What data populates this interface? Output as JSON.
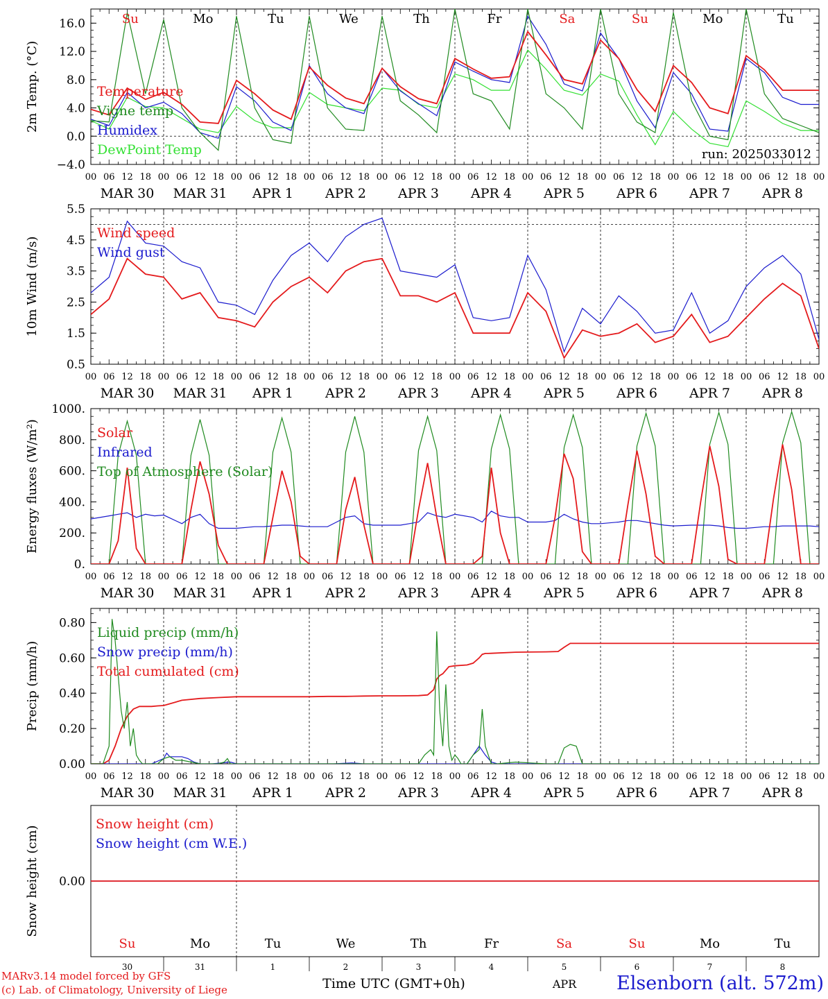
{
  "run_label": "run: 2025033012",
  "time_axis": {
    "xlabel": "Time UTC (GMT+0h)",
    "days": [
      "MAR 30",
      "MAR 31",
      "APR  1",
      "APR  2",
      "APR  3",
      "APR  4",
      "APR  5",
      "APR  6",
      "APR  7",
      "APR  8"
    ],
    "hour_ticks": [
      "00",
      "06",
      "12",
      "18"
    ],
    "weekdays": [
      "Su",
      "Mo",
      "Tu",
      "We",
      "Th",
      "Fr",
      "Sa",
      "Su",
      "Mo",
      "Tu"
    ],
    "weekday_colors": [
      "#e41a1c",
      "#000000",
      "#000000",
      "#000000",
      "#000000",
      "#000000",
      "#e41a1c",
      "#e41a1c",
      "#000000",
      "#000000"
    ],
    "bottom_day_numbers": [
      "30",
      "31",
      "1",
      "2",
      "3",
      "4",
      "5",
      "6",
      "7",
      "8"
    ],
    "bottom_month": "APR",
    "range_hours": [
      0,
      240
    ]
  },
  "colors": {
    "red": "#e41a1c",
    "blue": "#1a1acd",
    "green": "#1f8a1f",
    "lightgreen": "#33e033"
  },
  "footer": {
    "model": "MARv3.14 model forced by GFS",
    "lab": "(c) Lab. of Climatology, University of Liege",
    "station": "Elsenborn (alt. 572m)"
  },
  "chart_data": [
    {
      "type": "line",
      "ylabel": "2m Temp. (°C)",
      "ylim": [
        -4,
        18
      ],
      "yticks": [
        "16.0",
        "12.0",
        "8.0",
        "4.0",
        "0.0",
        "−4.0"
      ],
      "ytick_values": [
        16,
        12,
        8,
        4,
        0,
        -4
      ],
      "zero_line": 0,
      "x_hours": [
        0,
        6,
        12,
        18,
        24,
        30,
        36,
        42,
        48,
        54,
        60,
        66,
        72,
        78,
        84,
        90,
        96,
        102,
        108,
        114,
        120,
        126,
        132,
        138,
        144,
        150,
        156,
        162,
        168,
        174,
        180,
        186,
        192,
        198,
        204,
        210,
        216,
        222,
        228,
        234,
        240
      ],
      "series": [
        {
          "name": "Temperature",
          "color": "#e41a1c",
          "values": [
            3.8,
            3.0,
            6.8,
            5.2,
            6.2,
            4.5,
            2.0,
            1.8,
            7.9,
            6.0,
            3.7,
            2.4,
            9.8,
            7.2,
            5.4,
            4.6,
            9.6,
            7.0,
            5.3,
            4.6,
            11.0,
            9.5,
            8.2,
            8.4,
            14.8,
            11.5,
            8.0,
            7.4,
            13.6,
            11.0,
            6.6,
            3.5,
            10.0,
            7.6,
            4.0,
            3.2,
            11.4,
            9.4,
            6.5,
            6.5,
            6.5
          ]
        },
        {
          "name": "Vigne temp",
          "color": "#1f8a1f",
          "values": [
            2.2,
            2.0,
            17.5,
            6.0,
            16.5,
            4.0,
            0.5,
            -2.0,
            17.0,
            4.0,
            -0.5,
            -1.0,
            17.0,
            4.0,
            1.0,
            0.8,
            17.0,
            5.0,
            3.0,
            0.5,
            18.0,
            6.0,
            5.0,
            1.0,
            18.0,
            6.0,
            4.0,
            1.0,
            18.0,
            6.0,
            2.0,
            0.5,
            17.5,
            5.0,
            0.0,
            -0.5,
            18.0,
            6.0,
            2.5,
            1.5,
            0.5
          ]
        },
        {
          "name": "Humidex",
          "color": "#1a1acd",
          "values": [
            2.4,
            1.5,
            6.2,
            4.0,
            4.8,
            3.2,
            0.5,
            -0.3,
            7.0,
            5.0,
            2.0,
            0.8,
            10.0,
            6.0,
            4.0,
            3.2,
            9.6,
            6.4,
            4.6,
            2.9,
            10.5,
            9.2,
            8.0,
            7.6,
            17.0,
            13.0,
            7.4,
            6.4,
            14.6,
            11.0,
            5.0,
            1.2,
            9.0,
            6.0,
            1.0,
            0.7,
            11.0,
            9.0,
            5.5,
            4.5,
            4.5
          ]
        },
        {
          "name": "DewPoint Temp",
          "color": "#33e033",
          "values": [
            2.2,
            1.0,
            5.5,
            4.2,
            4.0,
            2.5,
            1.0,
            0.5,
            4.2,
            2.2,
            1.2,
            1.2,
            6.2,
            4.5,
            4.0,
            3.6,
            6.8,
            6.5,
            4.5,
            4.0,
            8.8,
            8.0,
            6.5,
            6.5,
            12.2,
            9.5,
            6.5,
            5.8,
            8.8,
            7.8,
            3.0,
            -1.2,
            3.5,
            1.0,
            -1.0,
            -1.5,
            5.0,
            3.5,
            1.8,
            0.8,
            0.8
          ]
        }
      ]
    },
    {
      "type": "line",
      "ylabel": "10m Wind (m/s)",
      "ylim": [
        0.5,
        5.5
      ],
      "yticks": [
        "5.5",
        "4.5",
        "3.5",
        "2.5",
        "1.5",
        "0.5"
      ],
      "ytick_values": [
        5.5,
        4.5,
        3.5,
        2.5,
        1.5,
        0.5
      ],
      "ref_line": 5.0,
      "x_hours": [
        0,
        6,
        12,
        18,
        24,
        30,
        36,
        42,
        48,
        54,
        60,
        66,
        72,
        78,
        84,
        90,
        96,
        102,
        108,
        114,
        120,
        126,
        132,
        138,
        144,
        150,
        156,
        162,
        168,
        174,
        180,
        186,
        192,
        198,
        204,
        210,
        216,
        222,
        228,
        234,
        240
      ],
      "series": [
        {
          "name": "Wind speed",
          "color": "#e41a1c",
          "values": [
            2.1,
            2.6,
            3.9,
            3.4,
            3.3,
            2.6,
            2.8,
            2.0,
            1.9,
            1.7,
            2.5,
            3.0,
            3.3,
            2.8,
            3.5,
            3.8,
            3.9,
            2.7,
            2.7,
            2.5,
            2.8,
            1.5,
            1.5,
            1.5,
            2.8,
            2.2,
            0.7,
            1.6,
            1.4,
            1.5,
            1.8,
            1.2,
            1.4,
            2.1,
            1.2,
            1.4,
            2.0,
            2.6,
            3.1,
            2.7,
            1.0
          ]
        },
        {
          "name": "Wind gust",
          "color": "#1a1acd",
          "values": [
            2.8,
            3.3,
            5.1,
            4.4,
            4.3,
            3.8,
            3.6,
            2.5,
            2.4,
            2.1,
            3.2,
            4.0,
            4.4,
            3.8,
            4.6,
            5.0,
            5.2,
            3.5,
            3.4,
            3.3,
            3.7,
            2.0,
            1.9,
            2.0,
            4.0,
            2.9,
            0.9,
            2.3,
            1.8,
            2.7,
            2.2,
            1.5,
            1.6,
            2.8,
            1.5,
            1.9,
            3.0,
            3.6,
            4.0,
            3.4,
            1.3
          ]
        }
      ]
    },
    {
      "type": "line",
      "ylabel": "Energy fluxes (W/m²)",
      "ylim": [
        0,
        1000
      ],
      "yticks": [
        "1000.",
        "800.",
        "600.",
        "400.",
        "200.",
        "0."
      ],
      "ytick_values": [
        1000,
        800,
        600,
        400,
        200,
        0
      ],
      "x_hours": [
        0,
        6,
        9,
        12,
        15,
        18,
        21,
        24,
        30,
        33,
        36,
        39,
        42,
        45,
        48,
        54,
        57,
        60,
        63,
        66,
        69,
        72,
        78,
        81,
        84,
        87,
        90,
        93,
        96,
        102,
        105,
        108,
        111,
        114,
        117,
        120,
        126,
        129,
        132,
        135,
        138,
        141,
        144,
        150,
        153,
        156,
        159,
        162,
        165,
        168,
        174,
        177,
        180,
        183,
        186,
        189,
        192,
        198,
        201,
        204,
        207,
        210,
        213,
        216,
        222,
        225,
        228,
        231,
        234,
        237,
        240
      ],
      "series": [
        {
          "name": "Solar",
          "color": "#e41a1c",
          "values": [
            0,
            0,
            150,
            620,
            100,
            0,
            0,
            0,
            0,
            350,
            660,
            450,
            120,
            0,
            0,
            0,
            0,
            300,
            600,
            400,
            50,
            0,
            0,
            0,
            350,
            560,
            250,
            0,
            0,
            0,
            0,
            350,
            650,
            300,
            0,
            0,
            0,
            50,
            620,
            200,
            0,
            0,
            0,
            0,
            300,
            710,
            550,
            80,
            0,
            0,
            0,
            380,
            730,
            450,
            50,
            0,
            0,
            0,
            400,
            760,
            500,
            30,
            0,
            0,
            0,
            420,
            770,
            480,
            0,
            0,
            0
          ]
        },
        {
          "name": "Infrared",
          "color": "#1a1acd",
          "values": [
            290,
            310,
            320,
            330,
            300,
            320,
            310,
            315,
            260,
            300,
            320,
            260,
            230,
            230,
            230,
            240,
            240,
            245,
            250,
            250,
            245,
            240,
            240,
            270,
            300,
            310,
            260,
            250,
            250,
            250,
            260,
            270,
            330,
            310,
            300,
            320,
            300,
            270,
            340,
            310,
            300,
            300,
            270,
            270,
            280,
            320,
            290,
            270,
            260,
            260,
            270,
            280,
            280,
            270,
            260,
            250,
            245,
            250,
            250,
            250,
            245,
            235,
            230,
            230,
            240,
            240,
            245,
            245,
            245,
            245,
            240
          ]
        },
        {
          "name": "Top of Atmosphere (Solar)",
          "color": "#1f8a1f",
          "values": [
            0,
            0,
            700,
            920,
            700,
            0,
            0,
            0,
            0,
            700,
            930,
            700,
            0,
            0,
            0,
            0,
            0,
            720,
            940,
            720,
            0,
            0,
            0,
            0,
            720,
            950,
            720,
            0,
            0,
            0,
            0,
            730,
            950,
            730,
            0,
            0,
            0,
            0,
            740,
            960,
            740,
            0,
            0,
            0,
            0,
            750,
            960,
            750,
            0,
            0,
            0,
            0,
            760,
            970,
            760,
            0,
            0,
            0,
            0,
            770,
            975,
            770,
            0,
            0,
            0,
            0,
            780,
            980,
            780,
            0,
            0
          ]
        }
      ]
    },
    {
      "type": "line",
      "ylabel": "Precip (mm/h)",
      "ylim": [
        0,
        0.88
      ],
      "yticks": [
        "0.80",
        "0.60",
        "0.40",
        "0.20",
        "0.00"
      ],
      "ytick_values": [
        0.8,
        0.6,
        0.4,
        0.2,
        0.0
      ],
      "series": [
        {
          "name": "Liquid precip (mm/h)",
          "color": "#1f8a1f",
          "x_hours": [
            0,
            4,
            6,
            7,
            8,
            9,
            10,
            11,
            12,
            13,
            14,
            15,
            16,
            17,
            18,
            22,
            24,
            26,
            28,
            30,
            36,
            42,
            44,
            45,
            46,
            48,
            108,
            110,
            112,
            113,
            114,
            115,
            116,
            117,
            118,
            119,
            120,
            121,
            122,
            124,
            126,
            128,
            129,
            130,
            131,
            132,
            134,
            140,
            150,
            154,
            156,
            158,
            160,
            162,
            168,
            240
          ],
          "values": [
            0,
            0,
            0.1,
            0.82,
            0.7,
            0.5,
            0.3,
            0.2,
            0.35,
            0.1,
            0.2,
            0.05,
            0.02,
            0.0,
            0.0,
            0,
            0.03,
            0.04,
            0.02,
            0.02,
            0.0,
            0.0,
            0.01,
            0.03,
            0.0,
            0,
            0,
            0.05,
            0.08,
            0.05,
            0.75,
            0.3,
            0.1,
            0.45,
            0.1,
            0.02,
            0.05,
            0.03,
            0.0,
            0.0,
            0.05,
            0.08,
            0.31,
            0.1,
            0.05,
            0.0,
            0.0,
            0.01,
            0.0,
            0.0,
            0.09,
            0.11,
            0.1,
            0.0,
            0,
            0
          ]
        },
        {
          "name": "Snow precip (mm/h)",
          "color": "#1a1acd",
          "x_hours": [
            0,
            20,
            24,
            25,
            26,
            28,
            30,
            32,
            34,
            36,
            40,
            46,
            48,
            80,
            86,
            90,
            120,
            124,
            126,
            128,
            130,
            132,
            134,
            240
          ],
          "values": [
            0,
            0,
            0.03,
            0.06,
            0.04,
            0.04,
            0.04,
            0.03,
            0.01,
            0,
            0,
            0.01,
            0,
            0,
            0.005,
            0,
            0,
            0.0,
            0.05,
            0.1,
            0.05,
            0.01,
            0,
            0
          ]
        },
        {
          "name": "Total cumulated (cm)",
          "color": "#e41a1c",
          "x_hours": [
            0,
            4,
            6,
            8,
            10,
            12,
            14,
            16,
            18,
            20,
            22,
            24,
            30,
            36,
            42,
            48,
            54,
            60,
            66,
            72,
            78,
            84,
            90,
            96,
            102,
            108,
            111,
            113,
            114,
            115,
            116,
            118,
            120,
            124,
            126,
            128,
            129,
            130,
            131,
            132,
            140,
            150,
            154,
            156,
            158,
            240
          ],
          "values": [
            0,
            0,
            0.02,
            0.1,
            0.2,
            0.27,
            0.31,
            0.325,
            0.325,
            0.325,
            0.328,
            0.33,
            0.36,
            0.37,
            0.375,
            0.38,
            0.38,
            0.38,
            0.38,
            0.38,
            0.382,
            0.382,
            0.384,
            0.385,
            0.385,
            0.386,
            0.39,
            0.42,
            0.48,
            0.5,
            0.51,
            0.55,
            0.555,
            0.56,
            0.57,
            0.6,
            0.62,
            0.625,
            0.625,
            0.626,
            0.632,
            0.634,
            0.636,
            0.66,
            0.682,
            0.682
          ]
        }
      ]
    },
    {
      "type": "line",
      "ylabel": "Snow height (cm)",
      "ylim": [
        -1,
        1
      ],
      "yticks": [
        "0.00"
      ],
      "ytick_values": [
        0
      ],
      "series": [
        {
          "name": "Snow height (cm)",
          "color": "#e41a1c",
          "x_hours": [
            0,
            240
          ],
          "values": [
            0,
            0
          ]
        },
        {
          "name": "Snow height (cm W.E.)",
          "color": "#1a1acd",
          "x_hours": [
            0,
            240
          ],
          "values": [
            0,
            0
          ]
        }
      ]
    }
  ]
}
